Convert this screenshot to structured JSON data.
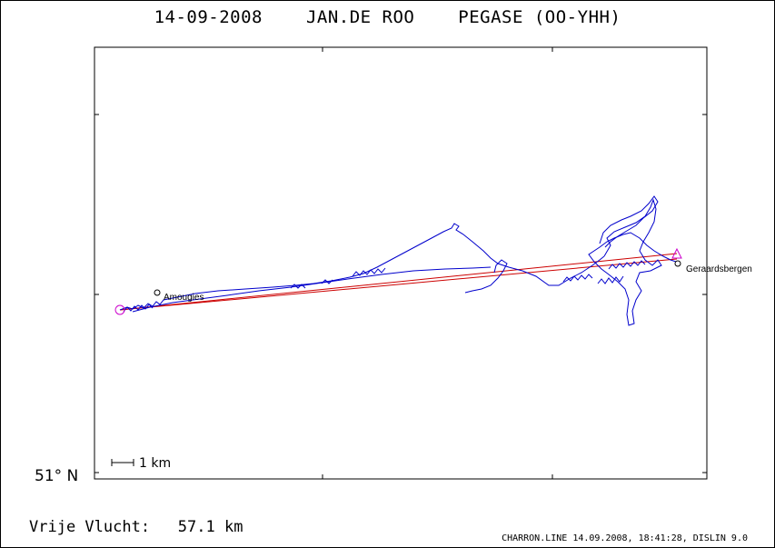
{
  "title": {
    "date": "14-09-2008",
    "pilot": "JAN.DE ROO",
    "glider": "PEGASE (OO-YHH)"
  },
  "map": {
    "latitude_label": "51° N",
    "scale_label": "1 km",
    "waypoints": [
      {
        "name": "Amougies"
      },
      {
        "name": "Geraardsbergen"
      }
    ],
    "colors": {
      "track": "#0000cc",
      "task": "#cc0000",
      "start_finish": "#cc00cc",
      "frame": "#000000"
    }
  },
  "footer": {
    "distance_label": "Vrije Vlucht:",
    "distance_value": "57.1 km",
    "credits": "CHARRON.LINE 14.09.2008, 18:41:28, DISLIN 9.0"
  }
}
